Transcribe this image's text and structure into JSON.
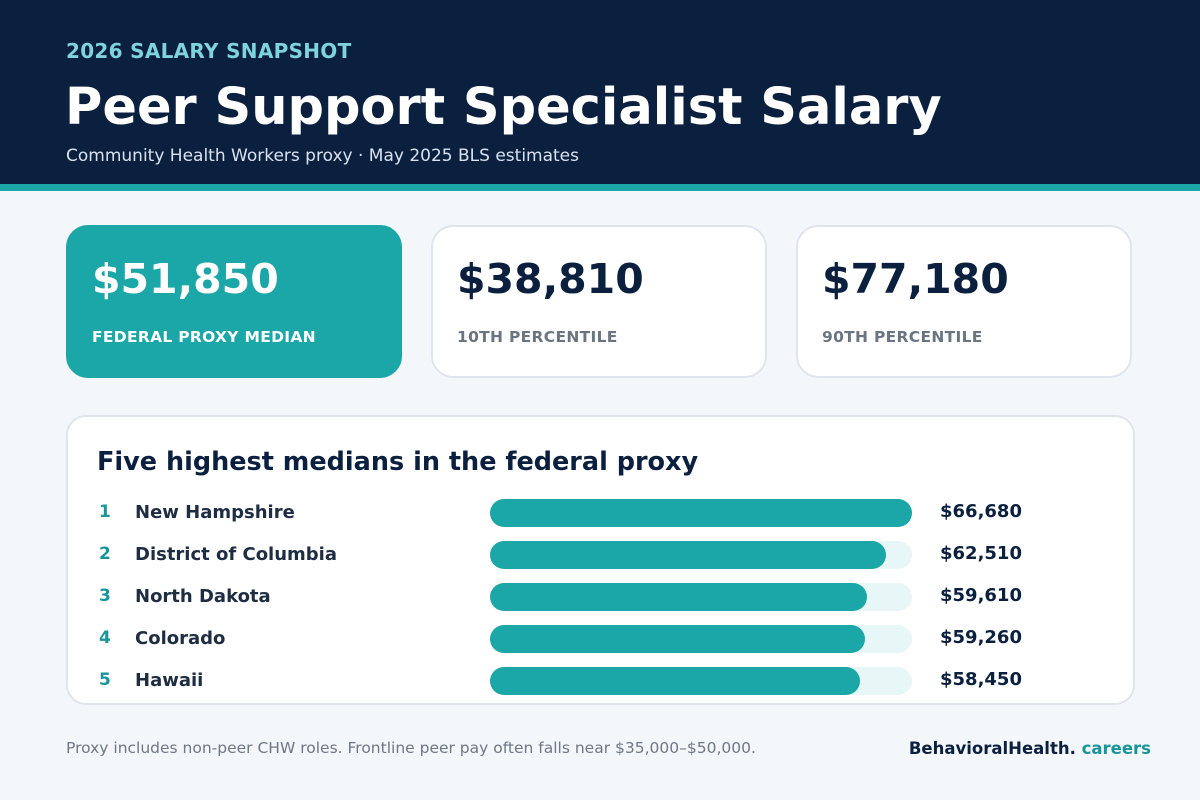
{
  "header": {
    "eyebrow": "2026 SALARY SNAPSHOT",
    "title": "Peer Support Specialist Salary",
    "subtitle": "Community Health Workers proxy · May 2025 BLS estimates"
  },
  "stats": [
    {
      "value": "$51,850",
      "label": "FEDERAL PROXY MEDIAN"
    },
    {
      "value": "$38,810",
      "label": "10TH PERCENTILE"
    },
    {
      "value": "$77,180",
      "label": "90TH PERCENTILE"
    }
  ],
  "ranking": {
    "title": "Five highest medians in the federal proxy",
    "max_value": 66680,
    "rows": [
      {
        "rank": "1",
        "state": "New Hampshire",
        "value_label": "$66,680",
        "value": 66680
      },
      {
        "rank": "2",
        "state": "District of Columbia",
        "value_label": "$62,510",
        "value": 62510
      },
      {
        "rank": "3",
        "state": "North Dakota",
        "value_label": "$59,610",
        "value": 59610
      },
      {
        "rank": "4",
        "state": "Colorado",
        "value_label": "$59,260",
        "value": 59260
      },
      {
        "rank": "5",
        "state": "Hawaii",
        "value_label": "$58,450",
        "value": 58450
      }
    ]
  },
  "footer": {
    "note": "Proxy includes non-peer CHW roles. Frontline peer pay often falls near $35,000–$50,000.",
    "brand_main": "BehavioralHealth.",
    "brand_accent": " careers"
  },
  "colors": {
    "navy": "#0b1f3f",
    "teal": "#1ba6a8",
    "track": "#e7f6f6"
  }
}
